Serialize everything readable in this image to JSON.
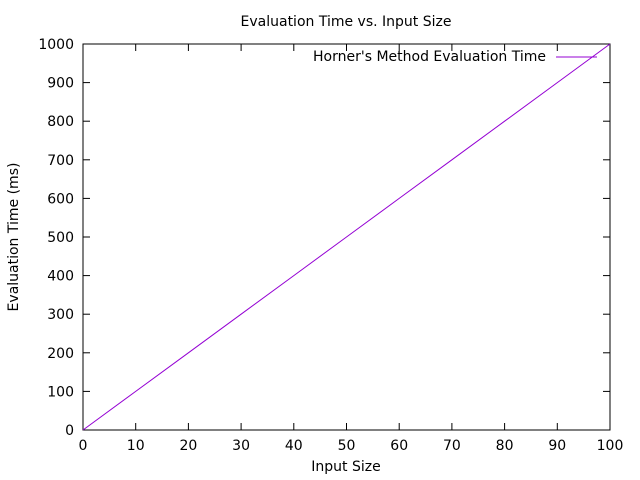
{
  "chart_data": {
    "type": "line",
    "title": "Evaluation Time vs. Input Size",
    "xlabel": "Input Size",
    "ylabel": "Evaluation Time (ms)",
    "xlim": [
      0,
      100
    ],
    "ylim": [
      0,
      1000
    ],
    "xticks": [
      0,
      10,
      20,
      30,
      40,
      50,
      60,
      70,
      80,
      90,
      100
    ],
    "yticks": [
      0,
      100,
      200,
      300,
      400,
      500,
      600,
      700,
      800,
      900,
      1000
    ],
    "grid": false,
    "legend_position": "top-right",
    "series": [
      {
        "name": "Horner's Method Evaluation Time",
        "color": "#9400d3",
        "x": [
          0,
          10,
          20,
          30,
          40,
          50,
          60,
          70,
          80,
          90,
          100
        ],
        "y": [
          0,
          100,
          200,
          300,
          400,
          500,
          600,
          700,
          800,
          900,
          1000
        ]
      }
    ]
  }
}
